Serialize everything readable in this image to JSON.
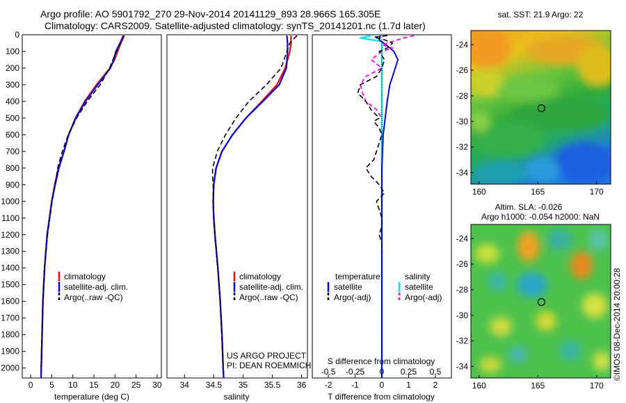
{
  "header": {
    "title_line1": "Argo profile: AO 5901792_270 29-Nov-2014 20141129_893 28.966S 165.305E",
    "title_line2": "Climatology: CARS2009. Satellite-adjusted climatology: synTS_20141201.nc (1.7d later)"
  },
  "colors": {
    "climatology": "#ff0000",
    "satellite": "#0000ff",
    "argo": "#000000",
    "sat_salinity": "#00e5ee",
    "argo_salinity": "#ff00ff"
  },
  "credit": "©IMOS 08-Dec-2014 20:00:28",
  "chart_data": [
    {
      "type": "line",
      "id": "temperature-profile",
      "xlabel": "temperature (deg C)",
      "ylabel": "",
      "xlim": [
        -2,
        31
      ],
      "ylim": [
        2060,
        0
      ],
      "xticks": [
        0,
        5,
        10,
        15,
        20,
        25,
        30
      ],
      "yticks": [
        0,
        100,
        200,
        300,
        400,
        500,
        600,
        700,
        800,
        900,
        1000,
        1100,
        1200,
        1300,
        1400,
        1500,
        1600,
        1700,
        1800,
        1900,
        2000
      ],
      "legend": [
        "climatology",
        "satellite-adj. clim.",
        "Argo(..raw -QC)"
      ],
      "series": [
        {
          "name": "climatology",
          "depth": [
            5,
            50,
            100,
            150,
            200,
            300,
            400,
            500,
            600,
            700,
            800,
            900,
            1000,
            1200,
            1400,
            1600,
            1800,
            2000,
            2060
          ],
          "values": [
            22.2,
            21.4,
            20.6,
            19.9,
            18.8,
            15.6,
            12.8,
            10.6,
            9.0,
            7.9,
            6.6,
            5.7,
            5.0,
            3.9,
            3.3,
            2.9,
            2.7,
            2.5,
            2.45
          ]
        },
        {
          "name": "satellite-adj. clim.",
          "depth": [
            5,
            50,
            100,
            150,
            200,
            300,
            400,
            500,
            600,
            700,
            800,
            900,
            1000,
            1200,
            1400,
            1600,
            1800,
            2000,
            2060
          ],
          "values": [
            22.0,
            21.2,
            20.2,
            19.7,
            18.9,
            15.9,
            13.0,
            10.7,
            9.0,
            7.9,
            6.7,
            5.8,
            5.0,
            3.9,
            3.3,
            2.9,
            2.7,
            2.5,
            2.45
          ]
        },
        {
          "name": "Argo(..raw -QC)",
          "depth": [
            5,
            50,
            100,
            150,
            200,
            300,
            400,
            500,
            600,
            700,
            800,
            900,
            1000,
            1200,
            1400,
            1600,
            1800,
            2000
          ],
          "values": [
            22.1,
            21.3,
            20.4,
            19.5,
            18.7,
            16.5,
            13.4,
            10.9,
            8.9,
            7.5,
            6.4,
            5.8,
            5.1,
            4.0,
            3.3,
            2.9,
            2.7,
            2.5
          ]
        }
      ]
    },
    {
      "type": "line",
      "id": "salinity-profile",
      "xlabel": "salinity",
      "xlim": [
        33.7,
        36.1
      ],
      "ylim": [
        2060,
        0
      ],
      "xticks": [
        34,
        34.5,
        35,
        35.5,
        36
      ],
      "legend": [
        "climatology",
        "satellite-adj. clim.",
        "Argo(..raw -QC)"
      ],
      "annotations": [
        "US ARGO PROJECT",
        "PI: DEAN ROEMMICH"
      ],
      "series": [
        {
          "name": "climatology",
          "depth": [
            5,
            50,
            100,
            200,
            300,
            400,
            500,
            600,
            700,
            800,
            900,
            1000,
            1100,
            1200,
            1400,
            1600,
            1800,
            2000,
            2060
          ],
          "values": [
            35.82,
            35.82,
            35.8,
            35.72,
            35.58,
            35.32,
            35.05,
            34.82,
            34.64,
            34.54,
            34.5,
            34.49,
            34.5,
            34.52,
            34.57,
            34.61,
            34.64,
            34.66,
            34.67
          ]
        },
        {
          "name": "satellite-adj. clim.",
          "depth": [
            5,
            50,
            100,
            200,
            300,
            400,
            500,
            600,
            700,
            800,
            900,
            1000,
            1100,
            1200,
            1400,
            1600,
            1800,
            2000,
            2060
          ],
          "values": [
            35.75,
            35.76,
            35.76,
            35.74,
            35.62,
            35.34,
            35.05,
            34.82,
            34.64,
            34.54,
            34.5,
            34.49,
            34.5,
            34.52,
            34.57,
            34.61,
            34.64,
            34.66,
            34.67
          ]
        },
        {
          "name": "Argo(..raw -QC)",
          "depth": [
            5,
            20,
            50,
            100,
            200,
            300,
            400,
            500,
            600,
            700,
            750,
            800,
            850,
            900,
            1000,
            1200,
            1400,
            1600,
            1800,
            2000
          ],
          "values": [
            35.92,
            35.88,
            35.8,
            35.75,
            35.65,
            35.4,
            35.1,
            34.88,
            34.7,
            34.56,
            34.52,
            34.48,
            34.48,
            34.49,
            34.49,
            34.52,
            34.57,
            34.61,
            34.64,
            34.66
          ]
        }
      ]
    },
    {
      "type": "line",
      "id": "difference-profile",
      "xlabel": "T difference from climatology",
      "xlabel_top": "S difference from climatology",
      "xlim": [
        -2.6,
        2.6
      ],
      "ylim": [
        2060,
        0
      ],
      "xticks": [
        -2,
        -1,
        0,
        1,
        2
      ],
      "s_xticks": [
        -0.5,
        -0.25,
        0,
        0.25,
        0.5
      ],
      "legend_headers": [
        "temperature",
        "salinity"
      ],
      "legend": [
        "satellite",
        "Argo(-adj)",
        "satellite",
        "Argo(-adj)"
      ],
      "series": [
        {
          "name": "satellite",
          "quantity": "T",
          "depth": [
            5,
            30,
            60,
            100,
            150,
            200,
            250,
            300,
            400,
            600,
            800,
            1000,
            2060
          ],
          "values": [
            -0.05,
            -0.1,
            0.15,
            0.45,
            0.6,
            0.5,
            0.4,
            0.3,
            0.2,
            0.05,
            0.0,
            0.0,
            0.0
          ]
        },
        {
          "name": "Argo(-adj)",
          "quantity": "T",
          "depth": [
            5,
            15,
            30,
            50,
            80,
            100,
            150,
            200,
            250,
            300,
            350,
            400,
            450,
            500,
            520,
            560,
            600,
            650,
            700,
            750,
            800,
            850,
            900,
            950,
            1000,
            1050,
            1100,
            1150,
            1200,
            1250,
            1300
          ],
          "values": [
            0.2,
            -0.3,
            0.1,
            0.4,
            0.2,
            -0.1,
            0.1,
            0.0,
            -0.2,
            -0.8,
            -0.9,
            -0.6,
            -0.4,
            -0.1,
            -0.3,
            -0.1,
            0.0,
            -0.1,
            -0.2,
            -0.3,
            -0.6,
            -0.4,
            -0.1,
            0.1,
            -0.2,
            -0.1,
            0.0,
            0.0,
            -0.1,
            0.0,
            0.0
          ]
        },
        {
          "name": "satellite",
          "quantity": "S",
          "depth": [
            5,
            20,
            40,
            60,
            100,
            200,
            400,
            2060
          ],
          "values": [
            -0.1,
            -0.2,
            0.0,
            0.0,
            0.0,
            0.0,
            0.0,
            0.0
          ]
        },
        {
          "name": "Argo(-adj)",
          "quantity": "S",
          "depth": [
            5,
            20,
            40,
            60,
            80,
            100,
            150,
            200,
            250,
            300,
            350,
            400,
            450,
            500
          ],
          "values": [
            0.3,
            0.2,
            0.1,
            0.0,
            0.1,
            0.0,
            -0.1,
            0.0,
            -0.15,
            -0.2,
            -0.18,
            -0.15,
            -0.05,
            0.0
          ]
        }
      ]
    },
    {
      "type": "heatmap",
      "id": "sst-map",
      "title": "sat. SST: 21.9  Argo: 22",
      "xlim": [
        159.3,
        171.2
      ],
      "ylim": [
        -34.9,
        -22.9
      ],
      "xticks": [
        160,
        165,
        170
      ],
      "yticks": [
        -24,
        -26,
        -28,
        -30,
        -32,
        -34
      ],
      "colormap": "jet",
      "marker": {
        "lon": 165.305,
        "lat": -28.966
      }
    },
    {
      "type": "heatmap",
      "id": "sla-map",
      "title": "Altim. SLA: -0.026",
      "subtitle": "Argo h1000: -0.054  h2000: NaN",
      "xlim": [
        159.3,
        171.2
      ],
      "ylim": [
        -34.9,
        -22.9
      ],
      "xticks": [
        160,
        165,
        170
      ],
      "yticks": [
        -24,
        -26,
        -28,
        -30,
        -32,
        -34
      ],
      "colormap": "jet",
      "marker": {
        "lon": 165.305,
        "lat": -28.966
      }
    }
  ]
}
